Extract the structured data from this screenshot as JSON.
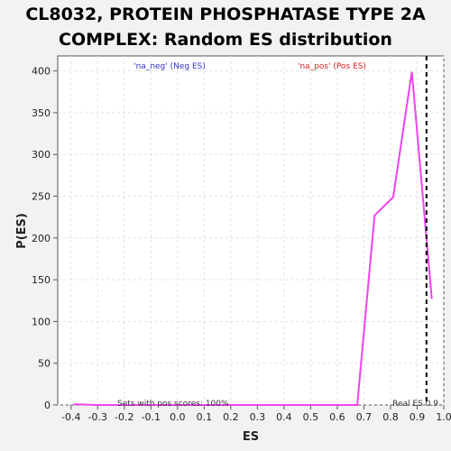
{
  "chart_data": {
    "type": "line",
    "title": [
      "CL8032, PROTEIN PHOSPHATASE TYPE 2A",
      "COMPLEX: Random ES distribution"
    ],
    "xlabel": "ES",
    "ylabel": "P(ES)",
    "xlim": [
      -0.45,
      1.0
    ],
    "ylim": [
      0,
      418
    ],
    "xticks": [
      -0.4,
      -0.3,
      -0.2,
      -0.1,
      0.0,
      0.1,
      0.2,
      0.3,
      0.4,
      0.5,
      0.6,
      0.7,
      0.8,
      0.9,
      1.0
    ],
    "xtick_labels": [
      "-0.4",
      "-0.3",
      "-0.2",
      "-0.1",
      "0.0",
      "0.1",
      "0.2",
      "0.3",
      "0.4",
      "0.5",
      "0.6",
      "0.7",
      "0.8",
      "0.9",
      "1.0"
    ],
    "yticks": [
      0,
      50,
      100,
      150,
      200,
      250,
      300,
      350,
      400
    ],
    "ytick_labels": [
      "0",
      "50",
      "100",
      "150",
      "200",
      "250",
      "300",
      "350",
      "400"
    ],
    "grid": true,
    "series": [
      {
        "color": "#ee44ee",
        "x": [
          -0.39,
          -0.3,
          -0.2,
          -0.1,
          0.0,
          0.1,
          0.2,
          0.3,
          0.4,
          0.5,
          0.6,
          0.675,
          0.74,
          0.81,
          0.88,
          0.955
        ],
        "y": [
          1,
          0,
          0,
          0,
          0,
          0,
          0,
          0,
          0,
          0,
          0,
          0,
          227,
          249,
          399,
          127
        ]
      }
    ],
    "real_es": 0.935,
    "annotations": {
      "neg_label": "'na_neg' (Neg ES)",
      "pos_label": "'na_pos' (Pos ES)",
      "bottom_left": "Sets with pos scores: 100%",
      "bottom_right": "Real ES 0.9"
    },
    "colors": {
      "neg": "#3333cc",
      "pos": "#dd2222",
      "line": "#ee44ee",
      "real_es_line": "#000000"
    }
  }
}
